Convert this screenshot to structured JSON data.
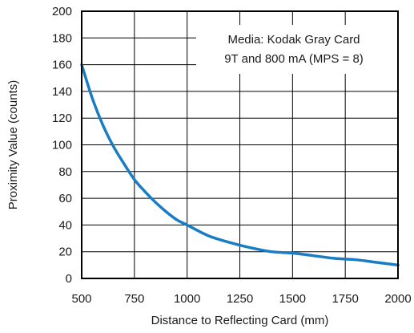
{
  "chart_data": {
    "type": "line",
    "title": "",
    "xlabel": "Distance to Reflecting Card (mm)",
    "ylabel": "Proximity Value (counts)",
    "xlim": [
      500,
      2000
    ],
    "ylim": [
      0,
      200
    ],
    "x_ticks": [
      500,
      750,
      1000,
      1250,
      1500,
      1750,
      2000
    ],
    "y_ticks": [
      0,
      20,
      40,
      60,
      80,
      100,
      120,
      140,
      160,
      180,
      200
    ],
    "x_tick_labels": [
      "500",
      "750",
      "1000",
      "1250",
      "1500",
      "1750",
      "2000"
    ],
    "y_tick_labels": [
      "0",
      "20",
      "40",
      "60",
      "80",
      "100",
      "120",
      "140",
      "160",
      "180",
      "200"
    ],
    "grid": true,
    "annotation": {
      "lines": [
        "Media: Kodak Gray Card",
        "9T and 800 mA (MPS = 8)"
      ],
      "placement": "top-right"
    },
    "series": [
      {
        "color": "#1a7dc4",
        "x": [
          500,
          550,
          600,
          650,
          700,
          750,
          800,
          850,
          900,
          950,
          1000,
          1100,
          1200,
          1300,
          1400,
          1500,
          1600,
          1700,
          1800,
          1900,
          2000
        ],
        "y": [
          160,
          135,
          115,
          99,
          86,
          74,
          65,
          57,
          50,
          44,
          40,
          32,
          27,
          23,
          20,
          19,
          17,
          15,
          14,
          12,
          10
        ]
      }
    ]
  }
}
